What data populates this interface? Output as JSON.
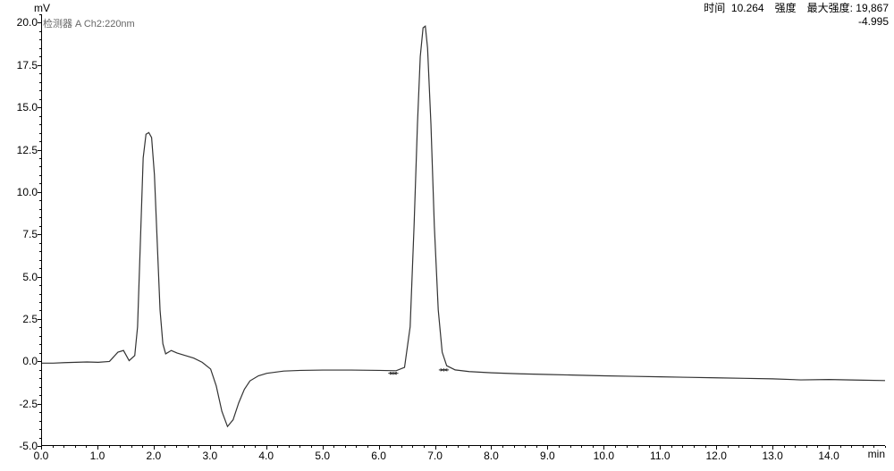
{
  "chart": {
    "type": "line",
    "y_unit": "mV",
    "x_unit": "min",
    "detector_label": "检测器 A Ch2:220nm",
    "header": {
      "max_intensity_label": "最大强度:",
      "max_intensity_value": "19,867",
      "time_label": "时间",
      "time_value": "10.264",
      "intensity_label": "强度",
      "intensity_value": "-4.995"
    },
    "xlim": [
      0.0,
      15.0
    ],
    "ylim": [
      -5.0,
      20.5
    ],
    "xticks": [
      0.0,
      1.0,
      2.0,
      3.0,
      4.0,
      5.0,
      6.0,
      7.0,
      8.0,
      9.0,
      10.0,
      11.0,
      12.0,
      13.0,
      14.0
    ],
    "xtick_labels": [
      "0.0",
      "1.0",
      "2.0",
      "3.0",
      "4.0",
      "5.0",
      "6.0",
      "7.0",
      "8.0",
      "9.0",
      "10.0",
      "11.0",
      "12.0",
      "13.0",
      "14.0"
    ],
    "xticks_minor_step": 0.2,
    "yticks": [
      -5.0,
      -2.5,
      0.0,
      2.5,
      5.0,
      7.5,
      10.0,
      12.5,
      15.0,
      17.5,
      20.0
    ],
    "ytick_labels": [
      "-5.0",
      "-2.5",
      "0.0",
      "2.5",
      "5.0",
      "7.5",
      "10.0",
      "12.5",
      "15.0",
      "17.5",
      "20.0"
    ],
    "yticks_minor_step": 0.5,
    "line_color": "#333333",
    "line_width": 1.2,
    "background_color": "#ffffff",
    "axis_color": "#000000",
    "label_fontsize": 12,
    "peak_markers": [
      {
        "x": 6.25,
        "y": -0.75
      },
      {
        "x": 7.15,
        "y": -0.55
      }
    ],
    "series": [
      {
        "x": 0.0,
        "y": -0.15
      },
      {
        "x": 0.2,
        "y": -0.15
      },
      {
        "x": 0.4,
        "y": -0.12
      },
      {
        "x": 0.6,
        "y": -0.1
      },
      {
        "x": 0.8,
        "y": -0.08
      },
      {
        "x": 1.0,
        "y": -0.1
      },
      {
        "x": 1.2,
        "y": -0.05
      },
      {
        "x": 1.35,
        "y": 0.5
      },
      {
        "x": 1.45,
        "y": 0.6
      },
      {
        "x": 1.55,
        "y": 0.0
      },
      {
        "x": 1.65,
        "y": 0.3
      },
      {
        "x": 1.7,
        "y": 2.0
      },
      {
        "x": 1.75,
        "y": 7.0
      },
      {
        "x": 1.8,
        "y": 12.0
      },
      {
        "x": 1.85,
        "y": 13.4
      },
      {
        "x": 1.9,
        "y": 13.5
      },
      {
        "x": 1.95,
        "y": 13.2
      },
      {
        "x": 2.0,
        "y": 11.0
      },
      {
        "x": 2.05,
        "y": 7.0
      },
      {
        "x": 2.1,
        "y": 3.0
      },
      {
        "x": 2.15,
        "y": 1.0
      },
      {
        "x": 2.2,
        "y": 0.4
      },
      {
        "x": 2.3,
        "y": 0.6
      },
      {
        "x": 2.4,
        "y": 0.45
      },
      {
        "x": 2.55,
        "y": 0.3
      },
      {
        "x": 2.7,
        "y": 0.15
      },
      {
        "x": 2.85,
        "y": -0.1
      },
      {
        "x": 3.0,
        "y": -0.5
      },
      {
        "x": 3.1,
        "y": -1.5
      },
      {
        "x": 3.2,
        "y": -3.0
      },
      {
        "x": 3.3,
        "y": -3.9
      },
      {
        "x": 3.4,
        "y": -3.5
      },
      {
        "x": 3.5,
        "y": -2.5
      },
      {
        "x": 3.6,
        "y": -1.7
      },
      {
        "x": 3.7,
        "y": -1.2
      },
      {
        "x": 3.85,
        "y": -0.9
      },
      {
        "x": 4.0,
        "y": -0.75
      },
      {
        "x": 4.3,
        "y": -0.62
      },
      {
        "x": 4.6,
        "y": -0.58
      },
      {
        "x": 5.0,
        "y": -0.56
      },
      {
        "x": 5.5,
        "y": -0.56
      },
      {
        "x": 6.0,
        "y": -0.58
      },
      {
        "x": 6.3,
        "y": -0.6
      },
      {
        "x": 6.45,
        "y": -0.4
      },
      {
        "x": 6.55,
        "y": 2.0
      },
      {
        "x": 6.62,
        "y": 8.0
      },
      {
        "x": 6.68,
        "y": 14.0
      },
      {
        "x": 6.73,
        "y": 18.0
      },
      {
        "x": 6.78,
        "y": 19.7
      },
      {
        "x": 6.82,
        "y": 19.8
      },
      {
        "x": 6.86,
        "y": 18.5
      },
      {
        "x": 6.92,
        "y": 14.0
      },
      {
        "x": 6.98,
        "y": 8.0
      },
      {
        "x": 7.05,
        "y": 3.0
      },
      {
        "x": 7.12,
        "y": 0.5
      },
      {
        "x": 7.2,
        "y": -0.3
      },
      {
        "x": 7.35,
        "y": -0.55
      },
      {
        "x": 7.6,
        "y": -0.65
      },
      {
        "x": 8.0,
        "y": -0.72
      },
      {
        "x": 8.5,
        "y": -0.78
      },
      {
        "x": 9.0,
        "y": -0.82
      },
      {
        "x": 9.5,
        "y": -0.86
      },
      {
        "x": 10.0,
        "y": -0.9
      },
      {
        "x": 10.5,
        "y": -0.93
      },
      {
        "x": 11.0,
        "y": -0.96
      },
      {
        "x": 11.5,
        "y": -0.99
      },
      {
        "x": 12.0,
        "y": -1.02
      },
      {
        "x": 12.5,
        "y": -1.05
      },
      {
        "x": 13.0,
        "y": -1.08
      },
      {
        "x": 13.5,
        "y": -1.14
      },
      {
        "x": 14.0,
        "y": -1.12
      },
      {
        "x": 14.5,
        "y": -1.15
      },
      {
        "x": 15.0,
        "y": -1.18
      }
    ]
  }
}
